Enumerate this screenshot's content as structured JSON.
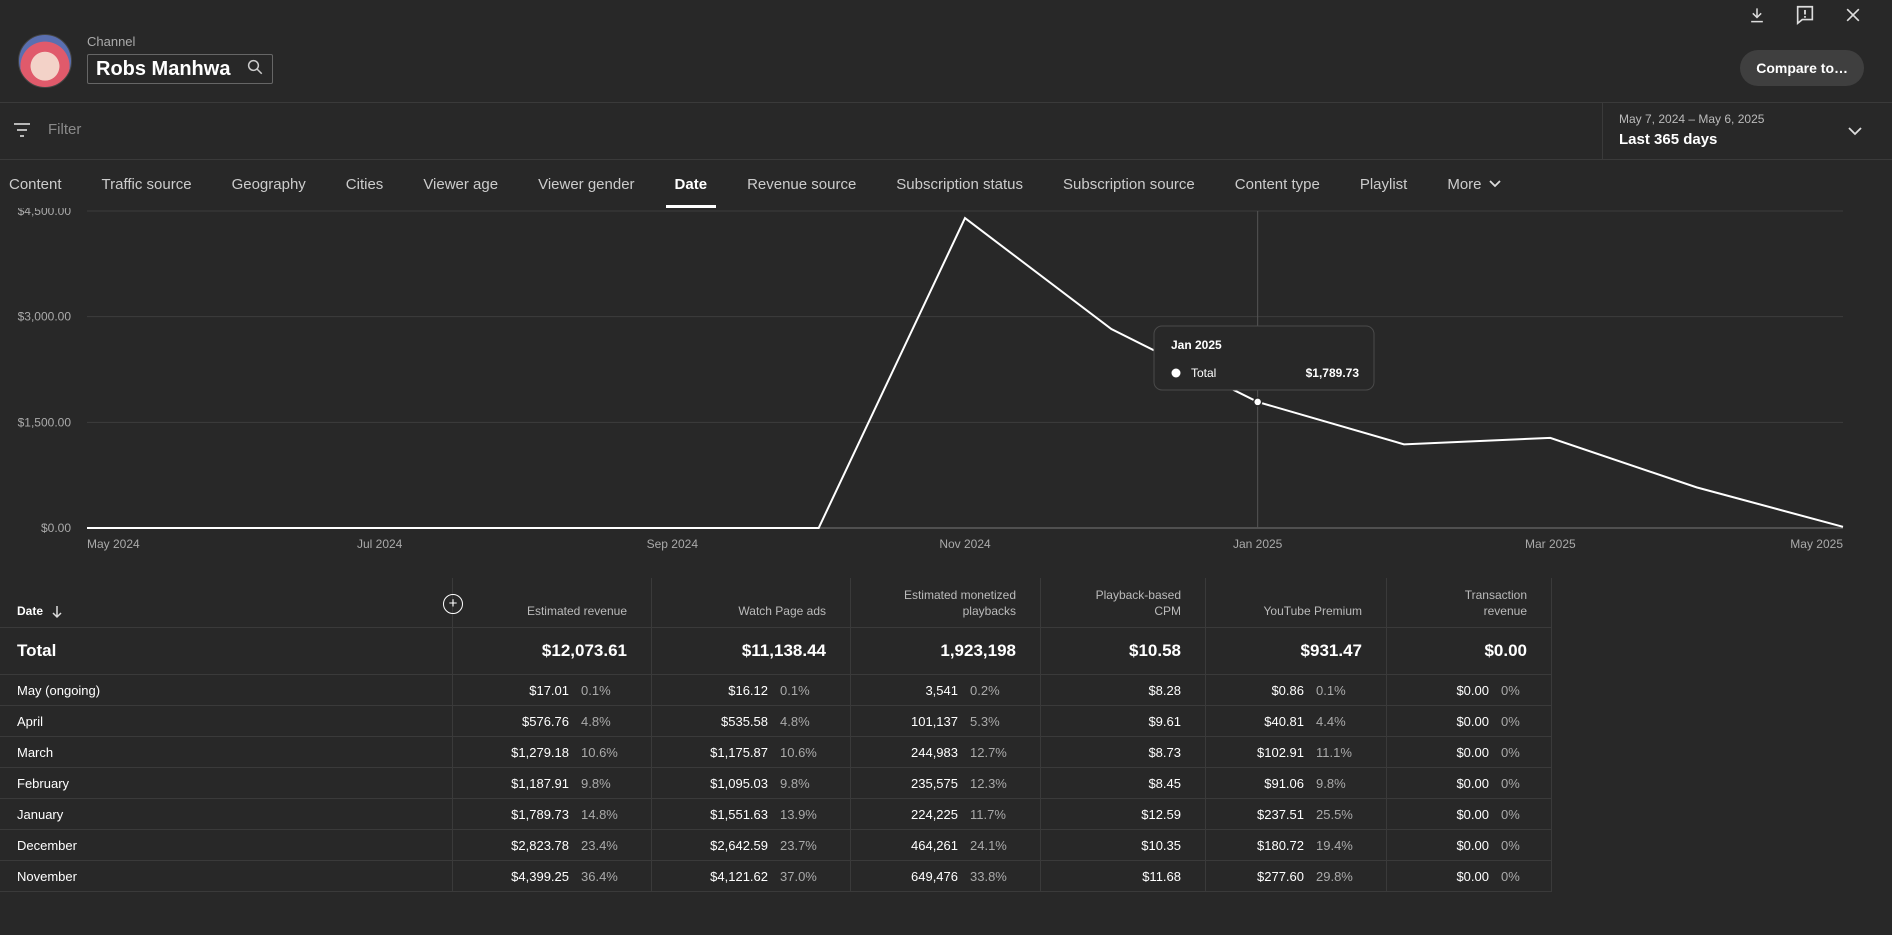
{
  "header": {
    "channel_label": "Channel",
    "channel_name": "Robs Manhwa",
    "compare_label": "Compare to…",
    "icons": [
      "download-icon",
      "feedback-icon",
      "close-icon",
      "search-icon"
    ]
  },
  "filter": {
    "placeholder": "Filter"
  },
  "date_picker": {
    "range": "May 7, 2024 – May 6, 2025",
    "label": "Last 365 days"
  },
  "tabs": [
    "Content",
    "Traffic source",
    "Geography",
    "Cities",
    "Viewer age",
    "Viewer gender",
    "Date",
    "Revenue source",
    "Subscription status",
    "Subscription source",
    "Content type",
    "Playlist",
    "More"
  ],
  "active_tab": "Date",
  "chart_data": {
    "type": "line",
    "x": [
      "May 2024",
      "Jun 2024",
      "Jul 2024",
      "Aug 2024",
      "Sep 2024",
      "Oct 2024",
      "Nov 2024",
      "Dec 2024",
      "Jan 2025",
      "Feb 2025",
      "Mar 2025",
      "Apr 2025",
      "May 2025"
    ],
    "x_tick_labels": [
      "May 2024",
      "Jul 2024",
      "Sep 2024",
      "Nov 2024",
      "Jan 2025",
      "Mar 2025",
      "May 2025"
    ],
    "series": [
      {
        "name": "Total",
        "values": [
          0,
          0,
          0,
          0,
          0,
          0,
          4399.25,
          2823.78,
          1789.73,
          1187.91,
          1279.18,
          576.76,
          17.01
        ]
      }
    ],
    "y_ticks": [
      "$0.00",
      "$1,500.00",
      "$3,000.00",
      "$4,500.00"
    ],
    "ylim": [
      0,
      4500
    ],
    "grid": true,
    "tooltip": {
      "title": "Jan 2025",
      "series": "Total",
      "value": "$1,789.73",
      "index": 8
    },
    "color": "#ffffff"
  },
  "table": {
    "sort_column": "Date",
    "columns": [
      "Date",
      "Estimated revenue",
      "Watch Page ads",
      "Estimated monetized playbacks",
      "Playback-based CPM",
      "YouTube Premium",
      "Transaction revenue"
    ],
    "total": {
      "label": "Total",
      "values": [
        "$12,073.61",
        "$11,138.44",
        "1,923,198",
        "$10.58",
        "$931.47",
        "$0.00"
      ]
    },
    "rows": [
      {
        "label": "May (ongoing)",
        "cells": [
          [
            "$17.01",
            "0.1%"
          ],
          [
            "$16.12",
            "0.1%"
          ],
          [
            "3,541",
            "0.2%"
          ],
          [
            "$8.28",
            ""
          ],
          [
            "$0.86",
            "0.1%"
          ],
          [
            "$0.00",
            "0%"
          ]
        ]
      },
      {
        "label": "April",
        "cells": [
          [
            "$576.76",
            "4.8%"
          ],
          [
            "$535.58",
            "4.8%"
          ],
          [
            "101,137",
            "5.3%"
          ],
          [
            "$9.61",
            ""
          ],
          [
            "$40.81",
            "4.4%"
          ],
          [
            "$0.00",
            "0%"
          ]
        ]
      },
      {
        "label": "March",
        "cells": [
          [
            "$1,279.18",
            "10.6%"
          ],
          [
            "$1,175.87",
            "10.6%"
          ],
          [
            "244,983",
            "12.7%"
          ],
          [
            "$8.73",
            ""
          ],
          [
            "$102.91",
            "11.1%"
          ],
          [
            "$0.00",
            "0%"
          ]
        ]
      },
      {
        "label": "February",
        "cells": [
          [
            "$1,187.91",
            "9.8%"
          ],
          [
            "$1,095.03",
            "9.8%"
          ],
          [
            "235,575",
            "12.3%"
          ],
          [
            "$8.45",
            ""
          ],
          [
            "$91.06",
            "9.8%"
          ],
          [
            "$0.00",
            "0%"
          ]
        ]
      },
      {
        "label": "January",
        "cells": [
          [
            "$1,789.73",
            "14.8%"
          ],
          [
            "$1,551.63",
            "13.9%"
          ],
          [
            "224,225",
            "11.7%"
          ],
          [
            "$12.59",
            ""
          ],
          [
            "$237.51",
            "25.5%"
          ],
          [
            "$0.00",
            "0%"
          ]
        ]
      },
      {
        "label": "December",
        "cells": [
          [
            "$2,823.78",
            "23.4%"
          ],
          [
            "$2,642.59",
            "23.7%"
          ],
          [
            "464,261",
            "24.1%"
          ],
          [
            "$10.35",
            ""
          ],
          [
            "$180.72",
            "19.4%"
          ],
          [
            "$0.00",
            "0%"
          ]
        ]
      },
      {
        "label": "November",
        "cells": [
          [
            "$4,399.25",
            "36.4%"
          ],
          [
            "$4,121.62",
            "37.0%"
          ],
          [
            "649,476",
            "33.8%"
          ],
          [
            "$11.68",
            ""
          ],
          [
            "$277.60",
            "29.8%"
          ],
          [
            "$0.00",
            "0%"
          ]
        ]
      }
    ]
  }
}
